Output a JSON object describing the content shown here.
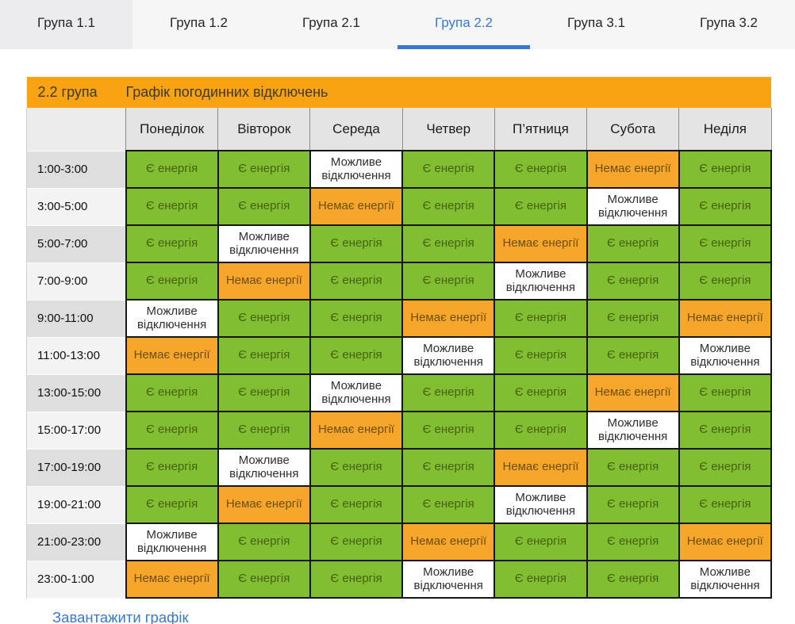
{
  "tabs": [
    {
      "id": "1-1",
      "label": "Група 1.1",
      "active": false
    },
    {
      "id": "1-2",
      "label": "Група 1.2",
      "active": false
    },
    {
      "id": "2-1",
      "label": "Група 2.1",
      "active": false
    },
    {
      "id": "2-2",
      "label": "Група 2.2",
      "active": true
    },
    {
      "id": "3-1",
      "label": "Група 3.1",
      "active": false
    },
    {
      "id": "3-2",
      "label": "Група 3.2",
      "active": false
    }
  ],
  "schedule": {
    "group_label": "2.2 група",
    "title": "Графік погодинних відключень",
    "days": [
      "Понеділок",
      "Вівторок",
      "Середа",
      "Четвер",
      "П’ятниця",
      "Субота",
      "Неділя"
    ],
    "legend": {
      "on": "Є енергія",
      "maybe": "Можливе відключення",
      "off": "Немає енергії"
    },
    "rows": [
      {
        "time": "1:00-3:00",
        "cells": [
          "on",
          "on",
          "maybe",
          "on",
          "on",
          "off",
          "on"
        ]
      },
      {
        "time": "3:00-5:00",
        "cells": [
          "on",
          "on",
          "off",
          "on",
          "on",
          "maybe",
          "on"
        ]
      },
      {
        "time": "5:00-7:00",
        "cells": [
          "on",
          "maybe",
          "on",
          "on",
          "off",
          "on",
          "on"
        ]
      },
      {
        "time": "7:00-9:00",
        "cells": [
          "on",
          "off",
          "on",
          "on",
          "maybe",
          "on",
          "on"
        ]
      },
      {
        "time": "9:00-11:00",
        "cells": [
          "maybe",
          "on",
          "on",
          "off",
          "on",
          "on",
          "off"
        ]
      },
      {
        "time": "11:00-13:00",
        "cells": [
          "off",
          "on",
          "on",
          "maybe",
          "on",
          "on",
          "maybe"
        ]
      },
      {
        "time": "13:00-15:00",
        "cells": [
          "on",
          "on",
          "maybe",
          "on",
          "on",
          "off",
          "on"
        ]
      },
      {
        "time": "15:00-17:00",
        "cells": [
          "on",
          "on",
          "off",
          "on",
          "on",
          "maybe",
          "on"
        ]
      },
      {
        "time": "17:00-19:00",
        "cells": [
          "on",
          "maybe",
          "on",
          "on",
          "off",
          "on",
          "on"
        ]
      },
      {
        "time": "19:00-21:00",
        "cells": [
          "on",
          "off",
          "on",
          "on",
          "maybe",
          "on",
          "on"
        ]
      },
      {
        "time": "21:00-23:00",
        "cells": [
          "maybe",
          "on",
          "on",
          "off",
          "on",
          "on",
          "off"
        ]
      },
      {
        "time": "23:00-1:00",
        "cells": [
          "off",
          "on",
          "on",
          "maybe",
          "on",
          "on",
          "maybe"
        ]
      }
    ]
  },
  "footer": {
    "download_label": "Завантажити графік"
  },
  "colors": {
    "available_green": "#82be32",
    "outage_orange": "#f6a72b",
    "possible_white": "#ffffff",
    "header_orange": "#f9a312",
    "accent_blue": "#3778d2"
  }
}
